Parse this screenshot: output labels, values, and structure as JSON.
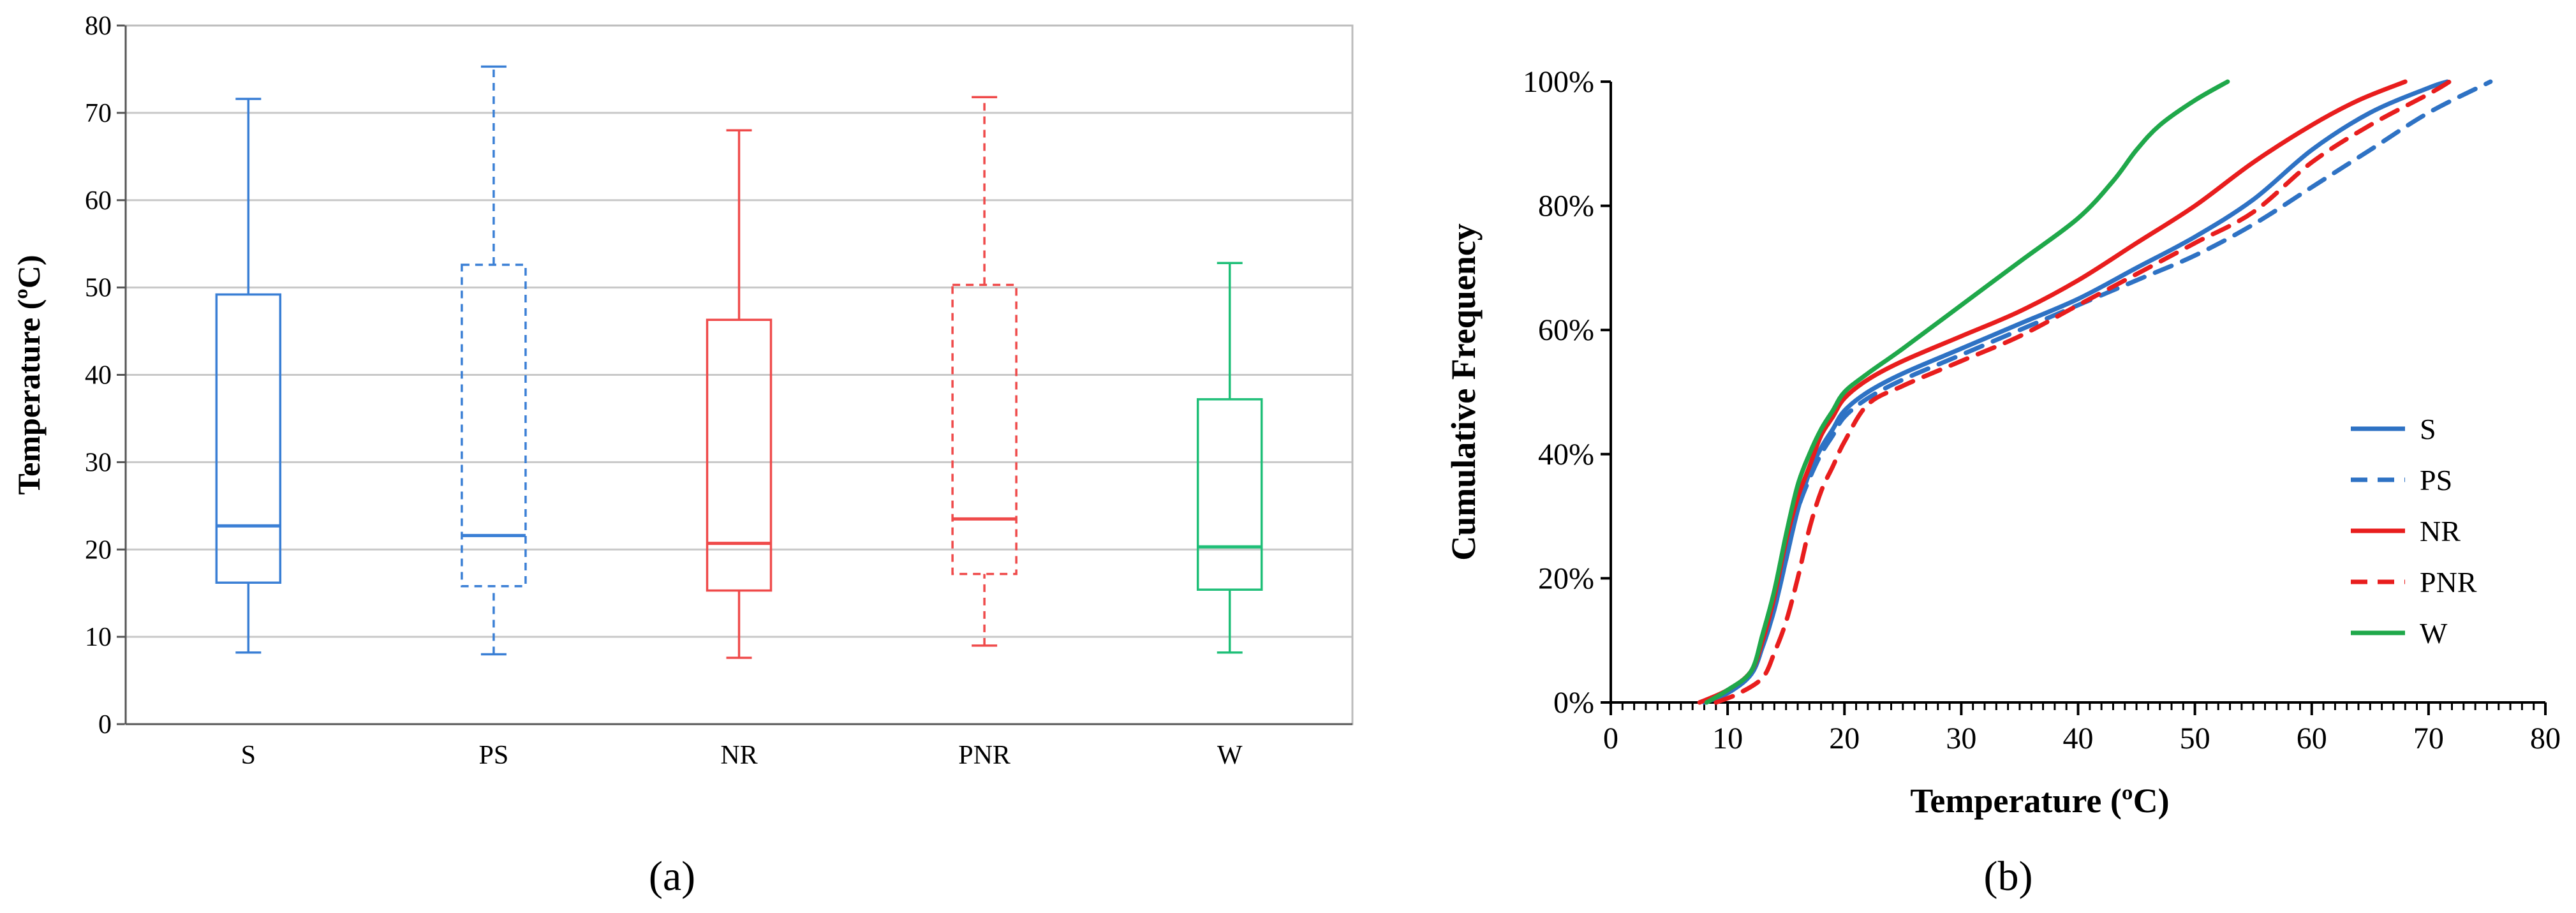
{
  "chart_data": [
    {
      "panel": "(a)",
      "type": "box",
      "ylabel": "Temperature (ºC)",
      "ylim": [
        0,
        80
      ],
      "yticks": [
        0,
        10,
        20,
        30,
        40,
        50,
        60,
        70,
        80
      ],
      "grid": true,
      "categories": [
        "S",
        "PS",
        "NR",
        "PNR",
        "W"
      ],
      "boxes": [
        {
          "label": "S",
          "min": 8.2,
          "q1": 16.2,
          "median": 22.7,
          "q3": 49.2,
          "max": 71.6,
          "color": "#3a7fd5",
          "dashed": false
        },
        {
          "label": "PS",
          "min": 8.0,
          "q1": 15.8,
          "median": 21.6,
          "q3": 52.6,
          "max": 75.3,
          "color": "#3a7fd5",
          "dashed": true
        },
        {
          "label": "NR",
          "min": 7.6,
          "q1": 15.3,
          "median": 20.7,
          "q3": 46.3,
          "max": 68.0,
          "color": "#ef4a4a",
          "dashed": false
        },
        {
          "label": "PNR",
          "min": 9.0,
          "q1": 17.2,
          "median": 23.5,
          "q3": 50.3,
          "max": 71.8,
          "color": "#ef4a4a",
          "dashed": true
        },
        {
          "label": "W",
          "min": 8.2,
          "q1": 15.4,
          "median": 20.3,
          "q3": 37.2,
          "max": 52.8,
          "color": "#1fbf78",
          "dashed": false
        }
      ]
    },
    {
      "panel": "(b)",
      "type": "line",
      "xlabel": "Temperature (ºC)",
      "ylabel": "Cumulative  Frequency",
      "xlim": [
        0,
        80
      ],
      "ylim": [
        0,
        100
      ],
      "xticks": [
        0,
        10,
        20,
        30,
        40,
        50,
        60,
        70,
        80
      ],
      "yticks": [
        "0%",
        "20%",
        "40%",
        "60%",
        "80%",
        "100%"
      ],
      "legend_position": "right",
      "series": [
        {
          "name": "S",
          "color": "#2e72c4",
          "dashed": false,
          "points": [
            [
              8,
              0
            ],
            [
              10,
              1.5
            ],
            [
              12,
              4.5
            ],
            [
              13,
              9
            ],
            [
              14,
              15
            ],
            [
              15,
              23
            ],
            [
              16,
              31
            ],
            [
              17,
              37
            ],
            [
              18,
              41
            ],
            [
              19,
              44
            ],
            [
              20,
              47
            ],
            [
              22,
              50
            ],
            [
              25,
              53
            ],
            [
              30,
              57
            ],
            [
              35,
              61
            ],
            [
              40,
              65
            ],
            [
              45,
              70
            ],
            [
              50,
              75
            ],
            [
              55,
              81
            ],
            [
              60,
              89
            ],
            [
              65,
              95
            ],
            [
              70,
              99
            ],
            [
              71.6,
              100
            ]
          ]
        },
        {
          "name": "PS",
          "color": "#2e72c4",
          "dashed": true,
          "points": [
            [
              8,
              0
            ],
            [
              10,
              1.5
            ],
            [
              12,
              4.5
            ],
            [
              13,
              9
            ],
            [
              14,
              15
            ],
            [
              15,
              23
            ],
            [
              16,
              31
            ],
            [
              17,
              36
            ],
            [
              18,
              40
            ],
            [
              19,
              43
            ],
            [
              20,
              46
            ],
            [
              22,
              49
            ],
            [
              25,
              52
            ],
            [
              30,
              56
            ],
            [
              35,
              60
            ],
            [
              40,
              64
            ],
            [
              45,
              68
            ],
            [
              50,
              72
            ],
            [
              55,
              77
            ],
            [
              60,
              83
            ],
            [
              65,
              89
            ],
            [
              70,
              95
            ],
            [
              75.3,
              100
            ]
          ]
        },
        {
          "name": "NR",
          "color": "#e81d1d",
          "dashed": false,
          "points": [
            [
              7.6,
              0
            ],
            [
              10,
              2
            ],
            [
              12,
              5
            ],
            [
              13,
              10
            ],
            [
              14,
              17
            ],
            [
              15,
              26
            ],
            [
              16,
              33
            ],
            [
              17,
              38
            ],
            [
              18,
              43
            ],
            [
              19,
              46
            ],
            [
              20,
              49
            ],
            [
              22,
              52
            ],
            [
              25,
              55
            ],
            [
              30,
              59
            ],
            [
              35,
              63
            ],
            [
              40,
              68
            ],
            [
              45,
              74
            ],
            [
              50,
              80
            ],
            [
              55,
              87
            ],
            [
              60,
              93
            ],
            [
              64,
              97
            ],
            [
              68,
              100
            ]
          ]
        },
        {
          "name": "PNR",
          "color": "#e81d1d",
          "dashed": true,
          "points": [
            [
              9,
              0
            ],
            [
              11,
              1.5
            ],
            [
              13,
              4
            ],
            [
              14,
              8
            ],
            [
              15,
              13
            ],
            [
              16,
              20
            ],
            [
              17,
              28
            ],
            [
              18,
              34
            ],
            [
              19,
              38
            ],
            [
              20,
              42
            ],
            [
              22,
              48
            ],
            [
              25,
              51
            ],
            [
              30,
              55
            ],
            [
              35,
              59
            ],
            [
              40,
              64
            ],
            [
              45,
              69
            ],
            [
              50,
              74
            ],
            [
              55,
              79
            ],
            [
              60,
              87
            ],
            [
              65,
              93
            ],
            [
              70,
              98
            ],
            [
              71.8,
              100
            ]
          ]
        },
        {
          "name": "W",
          "color": "#1fa84a",
          "dashed": false,
          "points": [
            [
              8.2,
              0
            ],
            [
              10,
              2
            ],
            [
              12,
              5
            ],
            [
              13,
              11
            ],
            [
              14,
              18
            ],
            [
              15,
              27
            ],
            [
              16,
              35
            ],
            [
              17,
              40
            ],
            [
              18,
              44
            ],
            [
              19,
              47
            ],
            [
              20,
              50
            ],
            [
              22,
              53
            ],
            [
              25,
              57
            ],
            [
              30,
              64
            ],
            [
              35,
              71
            ],
            [
              40,
              78
            ],
            [
              43,
              84
            ],
            [
              45,
              89
            ],
            [
              47,
              93
            ],
            [
              50,
              97
            ],
            [
              52.8,
              100
            ]
          ]
        }
      ]
    }
  ]
}
